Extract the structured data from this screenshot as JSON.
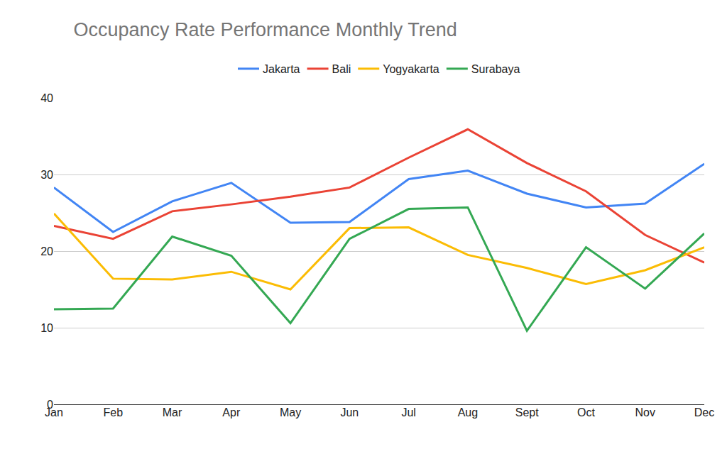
{
  "chart_data": {
    "type": "line",
    "title": "Occupancy Rate Performance Monthly Trend",
    "categories": [
      "Jan",
      "Feb",
      "Mar",
      "Apr",
      "May",
      "Jun",
      "Jul",
      "Aug",
      "Sept",
      "Oct",
      "Nov",
      "Dec"
    ],
    "series": [
      {
        "name": "Jakarta",
        "color": "#4285f4",
        "values": [
          28.3,
          22.5,
          26.5,
          28.9,
          23.7,
          23.8,
          29.4,
          30.5,
          27.5,
          25.7,
          26.2,
          31.4
        ]
      },
      {
        "name": "Bali",
        "color": "#ea4335",
        "values": [
          23.3,
          21.6,
          25.2,
          26.1,
          27.1,
          28.3,
          32.2,
          35.9,
          31.5,
          27.8,
          22.1,
          18.5
        ]
      },
      {
        "name": "Yogyakarta",
        "color": "#fbbc04",
        "values": [
          24.9,
          16.4,
          16.3,
          17.3,
          15.0,
          23.0,
          23.1,
          19.5,
          17.8,
          15.7,
          17.5,
          20.5
        ]
      },
      {
        "name": "Surabaya",
        "color": "#34a853",
        "values": [
          12.4,
          12.5,
          21.9,
          19.4,
          10.6,
          21.6,
          25.5,
          25.7,
          9.6,
          20.5,
          15.1,
          22.3
        ]
      }
    ],
    "ylim": [
      0,
      40
    ],
    "yticks": [
      0,
      10,
      20,
      30,
      40
    ],
    "grid": true,
    "legend": "top"
  }
}
